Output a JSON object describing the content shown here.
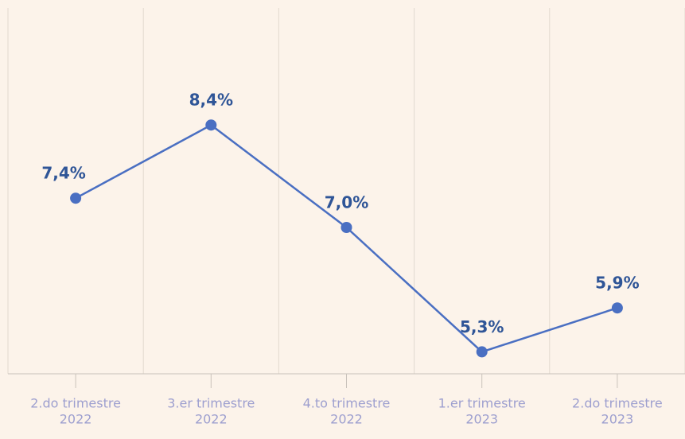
{
  "chart_data": {
    "type": "line",
    "categories": [
      [
        "2.do trimestre",
        "2022"
      ],
      [
        "3.er trimestre",
        "2022"
      ],
      [
        "4.to trimestre",
        "2022"
      ],
      [
        "1.er trimestre",
        "2023"
      ],
      [
        "2.do trimestre",
        "2023"
      ]
    ],
    "series": [
      {
        "color": "#4a6fc2",
        "values": [
          7.4,
          8.4,
          7.0,
          5.3,
          5.9
        ],
        "value_labels": [
          "7,4%",
          "8,4%",
          "7,0%",
          "5,3%",
          "5,9%"
        ]
      }
    ],
    "ylim": [
      5,
      10
    ]
  }
}
